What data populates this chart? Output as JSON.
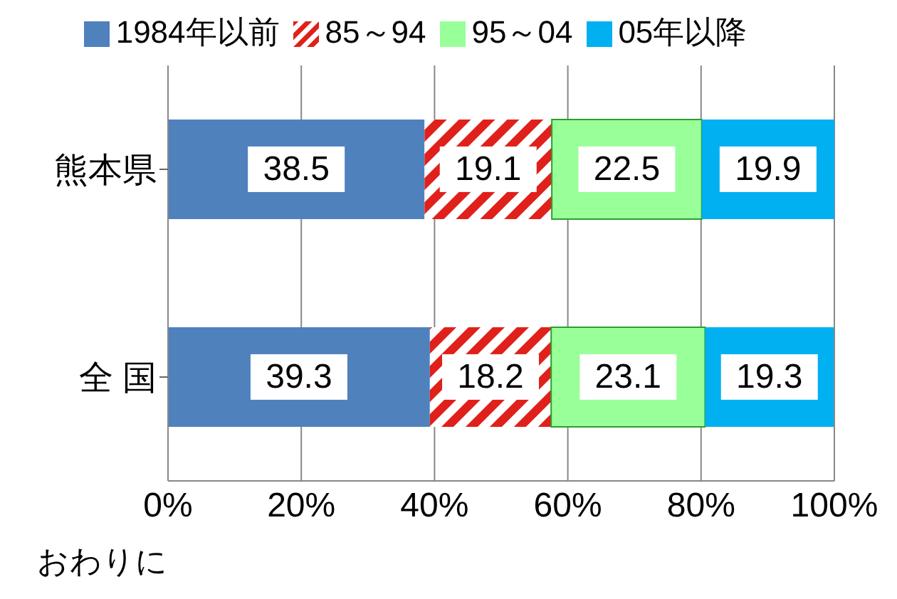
{
  "chart_data": {
    "type": "bar",
    "orientation": "horizontal",
    "stacked": true,
    "categories": [
      "熊本県",
      "全 国"
    ],
    "series": [
      {
        "name": "1984年以前",
        "color": "#4f81bd",
        "values": [
          38.5,
          39.3
        ]
      },
      {
        "name": "85～94",
        "color": "#e0201b",
        "values": [
          19.1,
          18.2
        ]
      },
      {
        "name": "95～04",
        "color": "#99ff99",
        "values": [
          22.5,
          23.1
        ]
      },
      {
        "name": "05年以降",
        "color": "#00b0f0",
        "values": [
          19.9,
          19.3
        ]
      }
    ],
    "xlim": [
      0,
      100
    ],
    "xticks": [
      {
        "value": 0,
        "label": "0%"
      },
      {
        "value": 20,
        "label": "20%"
      },
      {
        "value": 40,
        "label": "40%"
      },
      {
        "value": 60,
        "label": "60%"
      },
      {
        "value": 80,
        "label": "80%"
      },
      {
        "value": 100,
        "label": "100%"
      }
    ],
    "grid": "x",
    "legend": "top",
    "data_labels": true,
    "annotations": [
      "おわりに"
    ]
  }
}
